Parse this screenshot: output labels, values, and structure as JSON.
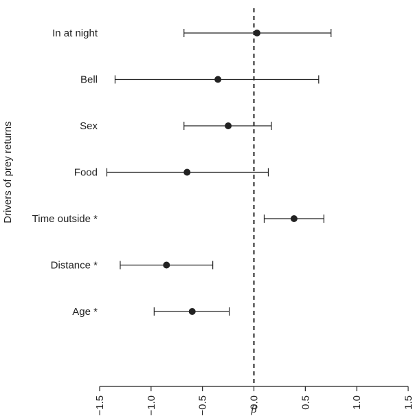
{
  "chart_data": {
    "type": "scatter",
    "title": "",
    "xlabel": "β",
    "ylabel": "Drivers of prey returns",
    "xlim": [
      -1.5,
      1.5
    ],
    "xticks": [
      "−1.5",
      "−1.0",
      "−0.5",
      "0.0",
      "0.5",
      "1.0",
      "1.5"
    ],
    "xtick_values": [
      -1.5,
      -1.0,
      -0.5,
      0.0,
      0.5,
      1.0,
      1.5
    ],
    "reference_line_x": 0,
    "grid": false,
    "legend": "none",
    "categories": [
      "In at night",
      "Bell",
      "Sex",
      "Food",
      "Time outside *",
      "Distance *",
      "Age *"
    ],
    "estimates": [
      0.03,
      -0.35,
      -0.25,
      -0.65,
      0.39,
      -0.85,
      -0.6
    ],
    "ci_lower": [
      -0.68,
      -1.35,
      -0.68,
      -1.43,
      0.1,
      -1.3,
      -0.97
    ],
    "ci_upper": [
      0.75,
      0.63,
      0.17,
      0.14,
      0.68,
      -0.4,
      -0.24
    ]
  }
}
